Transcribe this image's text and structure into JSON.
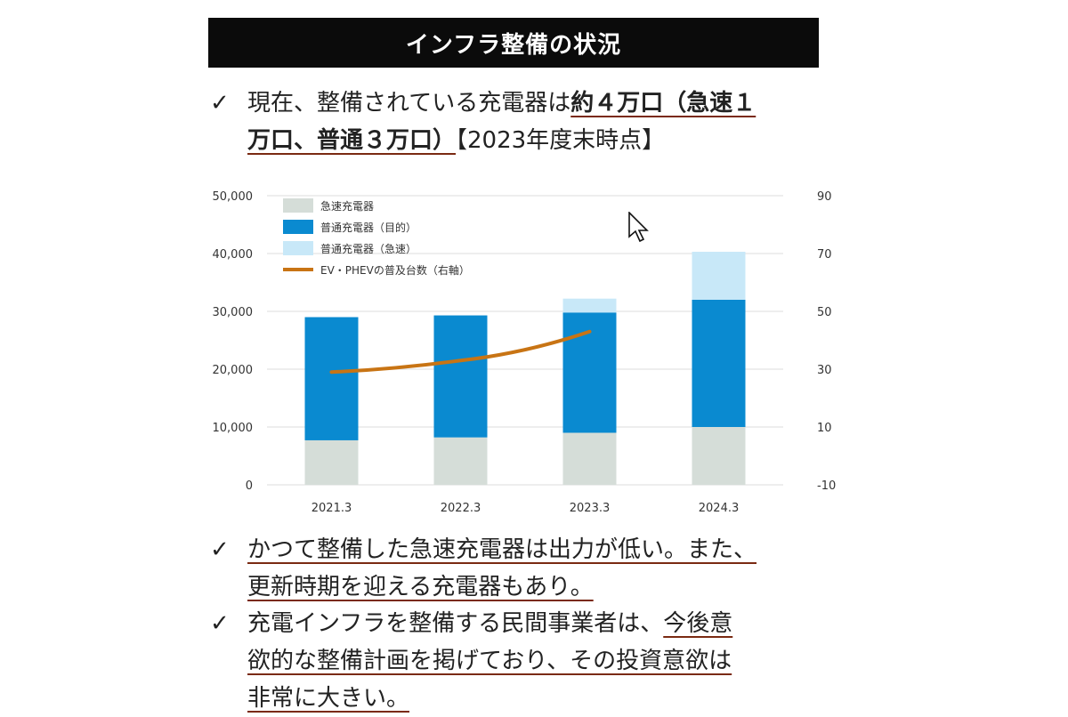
{
  "header": {
    "title": "インフラ整備の状況"
  },
  "bullets": {
    "check": "✓",
    "b1": {
      "l1a": "現在、整備されている充電器は",
      "l1b": "約４万口（急速１",
      "l2a": "万口、普通３万口）",
      "l2b": "【2023年度末時点】"
    },
    "b2": {
      "l1": "かつて整備した急速充電器は出力が低い。また、",
      "l2": "更新時期を迎える充電器もあり。"
    },
    "b3": {
      "l1a": "充電インフラを整備する民間事業者は、",
      "l1b": "今後意",
      "l2": "欲的な整備計画を掲げており、その投資意欲は",
      "l3": "非常に大きい。"
    }
  },
  "colors": {
    "rapid": "#d5ddd8",
    "normal_target": "#0a8ad0",
    "normal_rapid": "#c8e8f8",
    "line": "#c87414",
    "grid": "#dedede"
  },
  "chart_data": {
    "type": "bar",
    "stacked": true,
    "categories": [
      "2021.3",
      "2022.3",
      "2023.3",
      "2024.3"
    ],
    "series": [
      {
        "name": "急速充電器",
        "type": "bar",
        "axis": "left",
        "values": [
          7700,
          8200,
          9000,
          10000
        ]
      },
      {
        "name": "普通充電器（目的）",
        "type": "bar",
        "axis": "left",
        "values": [
          21300,
          21100,
          20800,
          22000
        ]
      },
      {
        "name": "普通充電器（急速）",
        "type": "bar",
        "axis": "left",
        "values": [
          0,
          0,
          2400,
          8300
        ]
      },
      {
        "name": "EV・PHEVの普及台数（右軸）",
        "type": "line",
        "axis": "right",
        "values": [
          29,
          33,
          43,
          null
        ]
      }
    ],
    "ylim_left": [
      0,
      50000
    ],
    "yticks_left": [
      "50,000",
      "40,000",
      "30,000",
      "20,000",
      "10,000",
      "0"
    ],
    "ylim_right": [
      -10,
      90
    ],
    "yticks_right": [
      "90",
      "70",
      "50",
      "30",
      "10",
      "-10"
    ],
    "grid": true,
    "legend_position": "top-left"
  }
}
